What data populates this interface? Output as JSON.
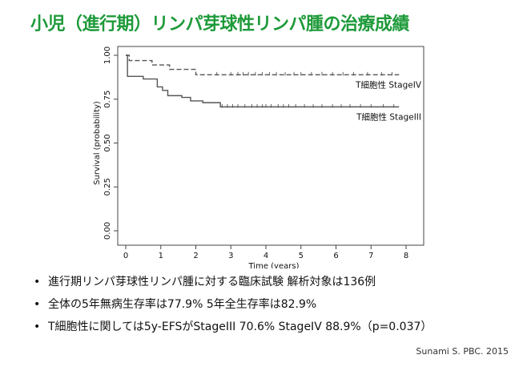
{
  "title": "小児（進行期）リンパ芽球性リンパ腫の治療成績",
  "chart_data": {
    "type": "line",
    "title": "",
    "xlabel": "Time (years)",
    "ylabel": "Survival (probability)",
    "xlim": [
      0,
      8
    ],
    "ylim": [
      0,
      1
    ],
    "x_ticks": [
      "0",
      "1",
      "2",
      "3",
      "4",
      "5",
      "6",
      "7",
      "8"
    ],
    "y_ticks": [
      "0.00",
      "0.25",
      "0.50",
      "0.75",
      "1.00"
    ],
    "grid": false,
    "series": [
      {
        "name": "T細胞性 StageIV",
        "style": "dashed",
        "color": "#555555",
        "x": [
          0,
          0.1,
          0.75,
          1.25,
          2.0,
          7.8
        ],
        "y": [
          1.0,
          0.97,
          0.945,
          0.92,
          0.889,
          0.889
        ],
        "censor_x": [
          2.6,
          3.0,
          3.2,
          3.35,
          3.5,
          3.7,
          3.9,
          4.1,
          4.3,
          4.55,
          4.8,
          5.0,
          5.3,
          5.6,
          5.9,
          6.2,
          6.5,
          6.9,
          7.3,
          7.6
        ]
      },
      {
        "name": "T細胞性 StageIII",
        "style": "solid",
        "color": "#555555",
        "x": [
          0,
          0.05,
          0.5,
          0.9,
          1.05,
          1.2,
          1.6,
          1.85,
          2.2,
          2.7,
          7.8
        ],
        "y": [
          1.0,
          0.88,
          0.865,
          0.82,
          0.8,
          0.77,
          0.76,
          0.74,
          0.73,
          0.706,
          0.706
        ],
        "censor_x": [
          2.75,
          2.9,
          3.05,
          3.2,
          3.4,
          3.6,
          3.75,
          3.9,
          4.0,
          4.15,
          4.35,
          4.5,
          4.65,
          4.85,
          5.1,
          5.35,
          5.6,
          5.9,
          6.15,
          6.4,
          6.7,
          7.0,
          7.35,
          7.65
        ]
      }
    ]
  },
  "bullets": [
    "進行期リンパ芽球性リンパ腫に対する臨床試験 解析対象は136例",
    "全体の5年無病生存率は77.9%  5年全生存率は82.9%",
    "T細胞性に関しては5y-EFSがStageIII 70.6% StageIV 88.9%（p=0.037）"
  ],
  "bullet_symbol": "•",
  "citation": "Sunami S. PBC. 2015"
}
